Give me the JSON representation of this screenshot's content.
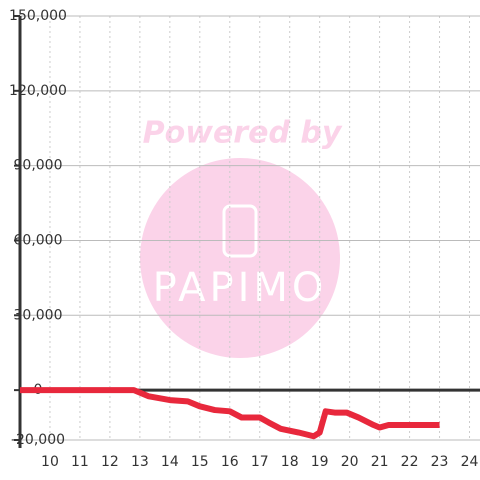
{
  "chart_data": {
    "type": "line",
    "watermark": {
      "line1": "Powered by",
      "line2": "PAPIMO"
    },
    "x": [
      9,
      12.8,
      13,
      13.3,
      14,
      14.6,
      15,
      15.5,
      16,
      16.4,
      17,
      17.3,
      17.7,
      18.3,
      18.8,
      19,
      19.2,
      19.5,
      19.9,
      20.3,
      20.8,
      21,
      21.3,
      22,
      23
    ],
    "series": [
      {
        "color": "#e8283c",
        "values": [
          0,
          0,
          -1000,
          -2500,
          -4000,
          -4500,
          -6500,
          -8000,
          -8500,
          -11000,
          -11000,
          -13000,
          -15500,
          -17000,
          -18500,
          -17000,
          -8500,
          -9000,
          -9000,
          -11000,
          -14000,
          -15000,
          -14000,
          -14000,
          -14000
        ]
      }
    ],
    "xlim": [
      9,
      24.35
    ],
    "xticks": [
      10,
      11,
      12,
      13,
      14,
      15,
      16,
      17,
      18,
      19,
      20,
      21,
      22,
      23,
      24
    ],
    "ylim": [
      -20000,
      150000
    ],
    "yticks": [
      {
        "value": -20000,
        "label": "-20,000"
      },
      0,
      {
        "value": 30000,
        "label": "30,000"
      },
      {
        "value": 60000,
        "label": "60,000"
      },
      {
        "value": 90000,
        "label": "90,000"
      },
      {
        "value": 120000,
        "label": "120,000"
      },
      {
        "value": 150000,
        "label": "150,000"
      }
    ],
    "grid": true
  }
}
